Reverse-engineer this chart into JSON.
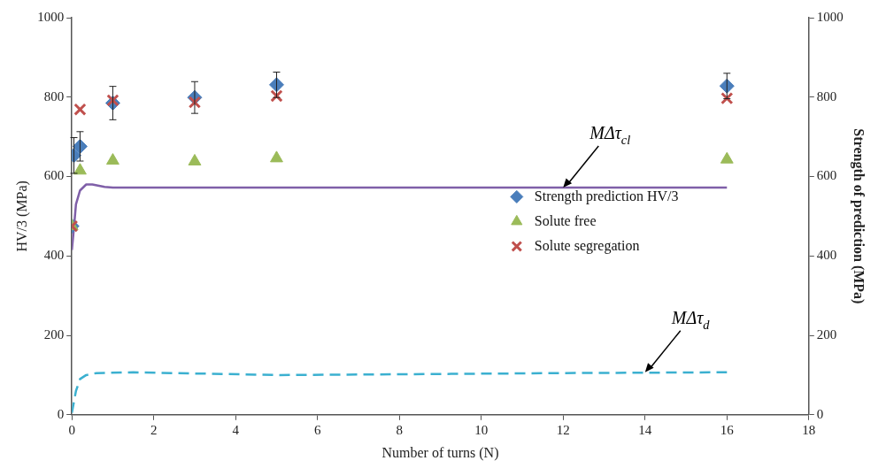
{
  "chart_data": {
    "type": "scatter",
    "xlabel": "Number of turns (N)",
    "ylabel": "HV/3 (MPa)",
    "y2label": "Strength of prediction (MPa)",
    "xlim": [
      0,
      18
    ],
    "xticks": [
      0,
      2,
      4,
      6,
      8,
      10,
      12,
      14,
      16,
      18
    ],
    "ylim": [
      0,
      1000
    ],
    "yticks": [
      0,
      200,
      400,
      600,
      800,
      1000
    ],
    "y2lim": [
      0,
      1000
    ],
    "y2ticks": [
      0,
      200,
      400,
      600,
      800,
      1000
    ],
    "grid": false,
    "legend": "center right",
    "series": [
      {
        "name": "Strength prediction HV/3",
        "marker": "diamond",
        "color": "#4a7ebb",
        "x": [
          0,
          0.05,
          0.2,
          1,
          3,
          5,
          16
        ],
        "values": [
          475,
          653,
          676,
          785,
          799,
          831,
          828
        ],
        "errors": [
          null,
          45,
          37,
          42,
          40,
          32,
          32
        ]
      },
      {
        "name": "Solute free",
        "marker": "triangle",
        "color": "#9bbb59",
        "x": [
          0,
          0.2,
          1,
          3,
          5,
          16
        ],
        "values": [
          475,
          615,
          640,
          638,
          646,
          643
        ]
      },
      {
        "name": "Solute segregation",
        "marker": "cross",
        "color": "#c0504d",
        "x": [
          0,
          0.2,
          1,
          3,
          5,
          16
        ],
        "values": [
          475,
          769,
          792,
          787,
          803,
          797
        ]
      },
      {
        "type": "line",
        "line_style": "solid",
        "marker": "none",
        "color": "#7f5fa8",
        "x": [
          0,
          0.05,
          0.1,
          0.2,
          0.35,
          0.5,
          0.8,
          1,
          16
        ],
        "values": [
          415,
          470,
          530,
          565,
          580,
          580,
          574,
          572,
          572
        ]
      },
      {
        "type": "line",
        "line_style": "dashed",
        "marker": "none",
        "color": "#3bb0d0",
        "x": [
          0,
          0.1,
          0.2,
          0.35,
          0.6,
          1.5,
          3,
          5,
          8,
          12,
          16
        ],
        "values": [
          5,
          60,
          90,
          100,
          105,
          107,
          104,
          100,
          102,
          105,
          107
        ]
      }
    ],
    "annotations": [
      {
        "text": "MΔτ$_{cl}$",
        "x": 12,
        "y": 572
      },
      {
        "text": "MΔτ$_{d}$",
        "x": 14,
        "y": 107
      }
    ]
  }
}
